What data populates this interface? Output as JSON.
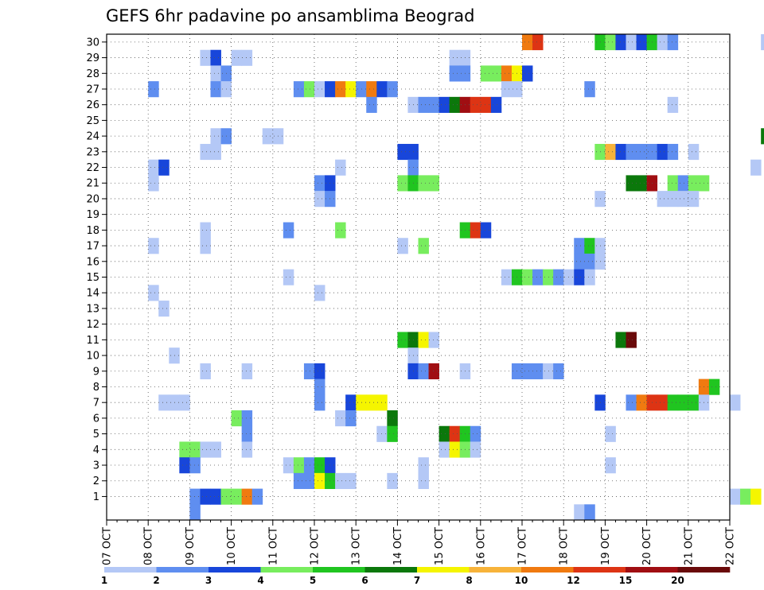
{
  "chart_data": {
    "type": "heatmap",
    "title": "GEFS 6hr padavine po ansamblima Beograd",
    "xlabel": "",
    "ylabel": "",
    "x_ticks": [
      "07 OCT",
      "08 OCT",
      "09 OCT",
      "10 OCT",
      "11 OCT",
      "12 OCT",
      "13 OCT",
      "14 OCT",
      "15 OCT",
      "16 OCT",
      "17 OCT",
      "18 OCT",
      "19 OCT",
      "20 OCT",
      "21 OCT",
      "22 OCT"
    ],
    "x_range_days": [
      0,
      15
    ],
    "steps_per_day": 4,
    "y_ticks": [
      "1",
      "2",
      "3",
      "4",
      "5",
      "6",
      "7",
      "8",
      "9",
      "10",
      "11",
      "12",
      "13",
      "14",
      "15",
      "16",
      "17",
      "18",
      "19",
      "20",
      "21",
      "22",
      "23",
      "24",
      "25",
      "26",
      "27",
      "28",
      "29",
      "30"
    ],
    "y_range": [
      0,
      30
    ],
    "grid": true,
    "colorbar": {
      "labels": [
        "1",
        "2",
        "3",
        "4",
        "5",
        "6",
        "7",
        "8",
        "10",
        "12",
        "15",
        "20"
      ],
      "colors": [
        "#b4c8f6",
        "#5f8ef0",
        "#1846da",
        "#78ed5e",
        "#20c520",
        "#0b780b",
        "#f5f500",
        "#f7b33a",
        "#f07a10",
        "#dd3414",
        "#a00e12",
        "#6a0a0a"
      ]
    },
    "cells": [
      [
        30,
        40,
        9
      ],
      [
        30,
        41,
        10
      ],
      [
        30,
        47,
        5
      ],
      [
        30,
        48,
        4
      ],
      [
        30,
        49,
        3
      ],
      [
        30,
        50,
        1
      ],
      [
        30,
        51,
        3
      ],
      [
        30,
        52,
        5
      ],
      [
        30,
        53,
        1
      ],
      [
        30,
        54,
        2
      ],
      [
        30,
        63,
        1
      ],
      [
        29,
        9,
        1
      ],
      [
        29,
        10,
        3
      ],
      [
        29,
        12,
        1
      ],
      [
        29,
        13,
        1
      ],
      [
        29,
        33,
        1
      ],
      [
        29,
        34,
        1
      ],
      [
        28,
        10,
        1
      ],
      [
        28,
        11,
        2
      ],
      [
        28,
        33,
        2
      ],
      [
        28,
        34,
        2
      ],
      [
        28,
        36,
        4
      ],
      [
        28,
        37,
        4
      ],
      [
        28,
        38,
        9
      ],
      [
        28,
        39,
        7
      ],
      [
        28,
        40,
        3
      ],
      [
        27,
        4,
        2
      ],
      [
        27,
        10,
        2
      ],
      [
        27,
        11,
        1
      ],
      [
        27,
        18,
        2
      ],
      [
        27,
        19,
        4
      ],
      [
        27,
        20,
        1
      ],
      [
        27,
        21,
        3
      ],
      [
        27,
        22,
        9
      ],
      [
        27,
        23,
        7
      ],
      [
        27,
        24,
        2
      ],
      [
        27,
        25,
        9
      ],
      [
        27,
        26,
        3
      ],
      [
        27,
        27,
        2
      ],
      [
        27,
        38,
        1
      ],
      [
        27,
        39,
        1
      ],
      [
        27,
        46,
        2
      ],
      [
        26,
        25,
        2
      ],
      [
        26,
        29,
        1
      ],
      [
        26,
        30,
        2
      ],
      [
        26,
        31,
        2
      ],
      [
        26,
        32,
        3
      ],
      [
        26,
        33,
        6
      ],
      [
        26,
        34,
        11
      ],
      [
        26,
        35,
        10
      ],
      [
        26,
        36,
        10
      ],
      [
        26,
        37,
        3
      ],
      [
        26,
        54,
        1
      ],
      [
        26,
        75,
        3
      ],
      [
        26,
        78,
        2
      ],
      [
        24,
        10,
        1
      ],
      [
        24,
        11,
        2
      ],
      [
        24,
        15,
        1
      ],
      [
        24,
        16,
        1
      ],
      [
        24,
        63,
        6
      ],
      [
        24,
        90,
        4
      ],
      [
        23,
        9,
        1
      ],
      [
        23,
        10,
        1
      ],
      [
        23,
        28,
        3
      ],
      [
        23,
        29,
        3
      ],
      [
        23,
        47,
        4
      ],
      [
        23,
        48,
        8
      ],
      [
        23,
        49,
        3
      ],
      [
        23,
        50,
        2
      ],
      [
        23,
        51,
        2
      ],
      [
        23,
        52,
        2
      ],
      [
        23,
        53,
        3
      ],
      [
        23,
        54,
        2
      ],
      [
        23,
        56,
        1
      ],
      [
        23,
        66,
        2
      ],
      [
        22,
        4,
        1
      ],
      [
        22,
        5,
        3
      ],
      [
        22,
        22,
        1
      ],
      [
        22,
        29,
        2
      ],
      [
        22,
        62,
        1
      ],
      [
        21,
        4,
        1
      ],
      [
        21,
        20,
        2
      ],
      [
        21,
        21,
        3
      ],
      [
        21,
        28,
        4
      ],
      [
        21,
        29,
        5
      ],
      [
        21,
        30,
        4
      ],
      [
        21,
        31,
        4
      ],
      [
        21,
        50,
        6
      ],
      [
        21,
        51,
        6
      ],
      [
        21,
        52,
        11
      ],
      [
        21,
        54,
        4
      ],
      [
        21,
        55,
        2
      ],
      [
        21,
        56,
        4
      ],
      [
        21,
        57,
        4
      ],
      [
        21,
        64,
        1
      ],
      [
        21,
        65,
        1
      ],
      [
        21,
        67,
        1
      ],
      [
        21,
        81,
        1
      ],
      [
        21,
        83,
        2
      ],
      [
        21,
        84,
        7
      ],
      [
        20,
        20,
        1
      ],
      [
        20,
        21,
        2
      ],
      [
        20,
        47,
        1
      ],
      [
        20,
        53,
        1
      ],
      [
        20,
        54,
        1
      ],
      [
        20,
        55,
        1
      ],
      [
        20,
        56,
        1
      ],
      [
        19,
        65,
        1
      ],
      [
        19,
        66,
        7
      ],
      [
        19,
        67,
        2
      ],
      [
        19,
        68,
        7
      ],
      [
        19,
        69,
        6
      ],
      [
        19,
        70,
        6
      ],
      [
        19,
        71,
        3
      ],
      [
        19,
        72,
        1
      ],
      [
        19,
        73,
        12
      ],
      [
        19,
        74,
        1
      ],
      [
        19,
        75,
        1
      ],
      [
        19,
        86,
        2
      ],
      [
        19,
        87,
        10
      ],
      [
        19,
        88,
        9
      ],
      [
        18,
        9,
        1
      ],
      [
        18,
        17,
        2
      ],
      [
        18,
        22,
        4
      ],
      [
        18,
        34,
        5
      ],
      [
        18,
        35,
        10
      ],
      [
        18,
        36,
        3
      ],
      [
        18,
        64,
        2
      ],
      [
        17,
        4,
        1
      ],
      [
        17,
        9,
        1
      ],
      [
        17,
        28,
        1
      ],
      [
        17,
        30,
        4
      ],
      [
        17,
        45,
        2
      ],
      [
        17,
        46,
        5
      ],
      [
        17,
        47,
        1
      ],
      [
        17,
        68,
        1
      ],
      [
        17,
        82,
        1
      ],
      [
        17,
        83,
        3
      ],
      [
        16,
        45,
        2
      ],
      [
        16,
        46,
        2
      ],
      [
        16,
        47,
        1
      ],
      [
        15,
        17,
        1
      ],
      [
        15,
        38,
        1
      ],
      [
        15,
        39,
        5
      ],
      [
        15,
        40,
        4
      ],
      [
        15,
        41,
        2
      ],
      [
        15,
        42,
        4
      ],
      [
        15,
        43,
        2
      ],
      [
        15,
        44,
        1
      ],
      [
        15,
        45,
        3
      ],
      [
        15,
        46,
        1
      ],
      [
        14,
        4,
        1
      ],
      [
        14,
        20,
        1
      ],
      [
        13,
        5,
        1
      ],
      [
        11,
        28,
        5
      ],
      [
        11,
        29,
        6
      ],
      [
        11,
        30,
        7
      ],
      [
        11,
        31,
        1
      ],
      [
        11,
        49,
        6
      ],
      [
        11,
        50,
        12
      ],
      [
        11,
        89,
        1
      ],
      [
        10,
        6,
        1
      ],
      [
        10,
        29,
        1
      ],
      [
        9,
        9,
        1
      ],
      [
        9,
        13,
        1
      ],
      [
        9,
        19,
        2
      ],
      [
        9,
        20,
        3
      ],
      [
        9,
        29,
        3
      ],
      [
        9,
        30,
        2
      ],
      [
        9,
        31,
        11
      ],
      [
        9,
        34,
        1
      ],
      [
        9,
        39,
        2
      ],
      [
        9,
        40,
        2
      ],
      [
        9,
        41,
        2
      ],
      [
        9,
        42,
        1
      ],
      [
        9,
        43,
        2
      ],
      [
        8,
        20,
        2
      ],
      [
        8,
        57,
        9
      ],
      [
        8,
        58,
        5
      ],
      [
        7,
        5,
        1
      ],
      [
        7,
        6,
        1
      ],
      [
        7,
        7,
        1
      ],
      [
        7,
        20,
        2
      ],
      [
        7,
        23,
        3
      ],
      [
        7,
        24,
        7
      ],
      [
        7,
        25,
        7
      ],
      [
        7,
        26,
        7
      ],
      [
        7,
        47,
        3
      ],
      [
        7,
        50,
        2
      ],
      [
        7,
        51,
        9
      ],
      [
        7,
        52,
        10
      ],
      [
        7,
        53,
        10
      ],
      [
        7,
        54,
        5
      ],
      [
        7,
        55,
        5
      ],
      [
        7,
        56,
        5
      ],
      [
        7,
        57,
        1
      ],
      [
        7,
        60,
        1
      ],
      [
        7,
        89,
        3
      ],
      [
        6,
        12,
        4
      ],
      [
        6,
        13,
        2
      ],
      [
        6,
        22,
        1
      ],
      [
        6,
        23,
        2
      ],
      [
        6,
        27,
        6
      ],
      [
        5,
        13,
        2
      ],
      [
        5,
        26,
        1
      ],
      [
        5,
        27,
        5
      ],
      [
        5,
        32,
        6
      ],
      [
        5,
        33,
        10
      ],
      [
        5,
        34,
        5
      ],
      [
        5,
        35,
        2
      ],
      [
        5,
        48,
        1
      ],
      [
        4,
        7,
        4
      ],
      [
        4,
        8,
        4
      ],
      [
        4,
        9,
        1
      ],
      [
        4,
        10,
        1
      ],
      [
        4,
        13,
        1
      ],
      [
        4,
        32,
        1
      ],
      [
        4,
        33,
        7
      ],
      [
        4,
        34,
        4
      ],
      [
        4,
        35,
        1
      ],
      [
        3,
        7,
        3
      ],
      [
        3,
        8,
        2
      ],
      [
        3,
        17,
        1
      ],
      [
        3,
        18,
        4
      ],
      [
        3,
        19,
        2
      ],
      [
        3,
        20,
        5
      ],
      [
        3,
        21,
        3
      ],
      [
        3,
        30,
        1
      ],
      [
        3,
        48,
        1
      ],
      [
        2,
        18,
        2
      ],
      [
        2,
        19,
        2
      ],
      [
        2,
        20,
        7
      ],
      [
        2,
        21,
        5
      ],
      [
        2,
        22,
        1
      ],
      [
        2,
        23,
        1
      ],
      [
        2,
        27,
        1
      ],
      [
        2,
        30,
        1
      ],
      [
        2,
        66,
        1
      ],
      [
        1,
        8,
        2
      ],
      [
        1,
        9,
        3
      ],
      [
        1,
        10,
        3
      ],
      [
        1,
        11,
        4
      ],
      [
        1,
        12,
        4
      ],
      [
        1,
        13,
        9
      ],
      [
        1,
        14,
        2
      ],
      [
        1,
        60,
        1
      ],
      [
        1,
        61,
        4
      ],
      [
        1,
        62,
        7
      ],
      [
        0,
        8,
        2
      ],
      [
        0,
        45,
        1
      ],
      [
        0,
        46,
        2
      ],
      [
        0,
        70,
        10
      ],
      [
        0,
        71,
        5
      ],
      [
        0,
        72,
        7
      ],
      [
        0,
        73,
        3
      ],
      [
        0,
        74,
        5
      ],
      [
        0,
        75,
        1
      ]
    ]
  }
}
